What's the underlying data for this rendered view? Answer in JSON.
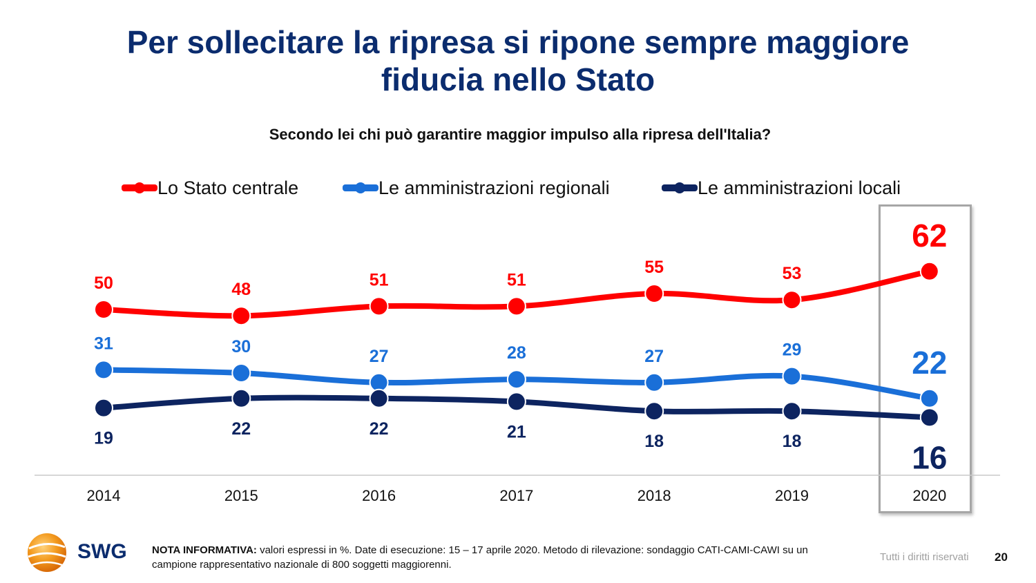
{
  "title_line1": "Per sollecitare la ripresa si ripone sempre maggiore",
  "title_line2": "fiducia nello Stato",
  "subtitle": "Secondo lei chi può garantire maggior impulso alla ripresa dell'Italia?",
  "colors": {
    "title": "#0b2c6e",
    "stato": "#ff0000",
    "regionali": "#1a6fd8",
    "locali": "#0d2460",
    "axis": "#c8c8c8"
  },
  "chart_data": {
    "type": "line",
    "categories": [
      "2014",
      "2015",
      "2016",
      "2017",
      "2018",
      "2019",
      "2020"
    ],
    "series": [
      {
        "name": "Lo Stato centrale",
        "color": "#ff0000",
        "values": [
          50,
          48,
          51,
          51,
          55,
          53,
          62
        ]
      },
      {
        "name": "Le amministrazioni regionali",
        "color": "#1a6fd8",
        "values": [
          31,
          30,
          27,
          28,
          27,
          29,
          22
        ]
      },
      {
        "name": "Le amministrazioni locali",
        "color": "#0d2460",
        "values": [
          19,
          22,
          22,
          21,
          18,
          18,
          16
        ]
      }
    ],
    "highlight_category": "2020",
    "grid": false,
    "legend_position": "top"
  },
  "logo": {
    "text": "SWG"
  },
  "note": {
    "label": "NOTA INFORMATIVA:",
    "text": "valori espressi in %. Date di esecuzione: 15 – 17 aprile 2020. Metodo di rilevazione: sondaggio CATI-CAMI-CAWI su un campione rappresentativo nazionale di 800 soggetti maggiorenni."
  },
  "rights": "Tutti i diritti riservati",
  "page_number": "20"
}
